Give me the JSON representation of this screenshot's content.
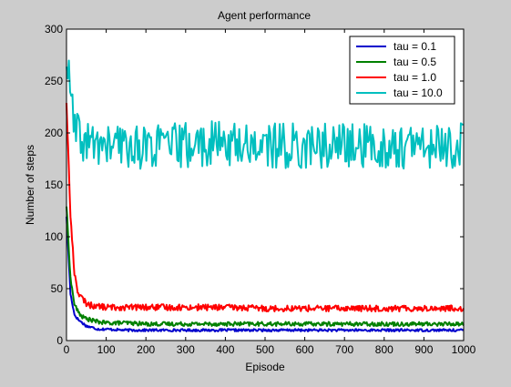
{
  "chart_data": {
    "type": "line",
    "title": "Agent performance",
    "xlabel": "Episode",
    "ylabel": "Number of steps",
    "xlim": [
      0,
      1000
    ],
    "ylim": [
      0,
      300
    ],
    "xticks": [
      0,
      100,
      200,
      300,
      400,
      500,
      600,
      700,
      800,
      900,
      1000
    ],
    "yticks": [
      0,
      50,
      100,
      150,
      200,
      250,
      300
    ],
    "grid": false,
    "legend_position": "top-right",
    "series": [
      {
        "name": "tau = 0.1",
        "color": "#0000cc",
        "x": [
          0,
          10,
          20,
          30,
          40,
          50,
          60,
          70,
          80,
          100,
          150,
          200,
          300,
          400,
          500,
          600,
          700,
          800,
          900,
          1000
        ],
        "y": [
          120,
          45,
          25,
          20,
          17,
          14,
          13,
          12,
          11,
          11,
          10,
          10,
          10,
          10,
          10,
          10,
          10,
          10,
          10,
          10
        ],
        "noise": 1.2
      },
      {
        "name": "tau = 0.5",
        "color": "#008000",
        "x": [
          0,
          10,
          20,
          30,
          40,
          50,
          60,
          80,
          100,
          150,
          200,
          300,
          400,
          500,
          600,
          700,
          800,
          900,
          1000
        ],
        "y": [
          130,
          60,
          35,
          27,
          23,
          21,
          20,
          18,
          17,
          17,
          16,
          16,
          16,
          16,
          16,
          16,
          16,
          16,
          16
        ],
        "noise": 2
      },
      {
        "name": "tau = 1.0",
        "color": "#ff0000",
        "x": [
          0,
          10,
          20,
          30,
          40,
          50,
          60,
          80,
          100,
          150,
          200,
          300,
          400,
          500,
          600,
          700,
          800,
          900,
          1000
        ],
        "y": [
          230,
          120,
          65,
          45,
          40,
          36,
          34,
          33,
          32,
          32,
          32,
          32,
          32,
          31,
          31,
          31,
          31,
          31,
          31
        ],
        "noise": 3
      },
      {
        "name": "tau = 10.0",
        "color": "#00bfbf",
        "x": [
          0,
          5,
          10,
          20,
          30,
          50,
          100,
          200,
          300,
          400,
          500,
          600,
          700,
          800,
          900,
          1000
        ],
        "y": [
          270,
          255,
          235,
          205,
          195,
          190,
          188,
          187,
          188,
          190,
          188,
          187,
          188,
          186,
          187,
          188
        ],
        "noise": 22
      }
    ]
  }
}
